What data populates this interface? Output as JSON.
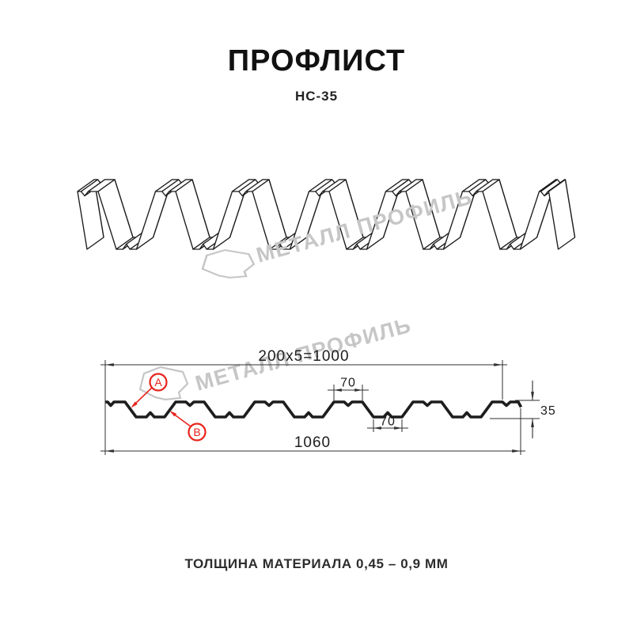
{
  "header": {
    "title": "ПРОФЛИСТ",
    "subtitle": "НС-35"
  },
  "watermark": {
    "text": "МЕТАЛЛ ПРОФИЛЬ",
    "color": "#c6c6c6"
  },
  "section": {
    "dims": {
      "pitch": "200x5=1000",
      "crest_width": "70",
      "valley_width": "70",
      "height": "35",
      "total_width": "1060"
    },
    "labels": {
      "a": "A",
      "b": "B"
    }
  },
  "footer": {
    "thickness_note": "ТОЛЩИНА МАТЕРИАЛА 0,45 – 0,9 ММ"
  },
  "colors": {
    "line": "#1d1d1d",
    "dim_line": "#2f2f2f",
    "annotation": "#e8241c",
    "text": "#1d1d1d"
  }
}
